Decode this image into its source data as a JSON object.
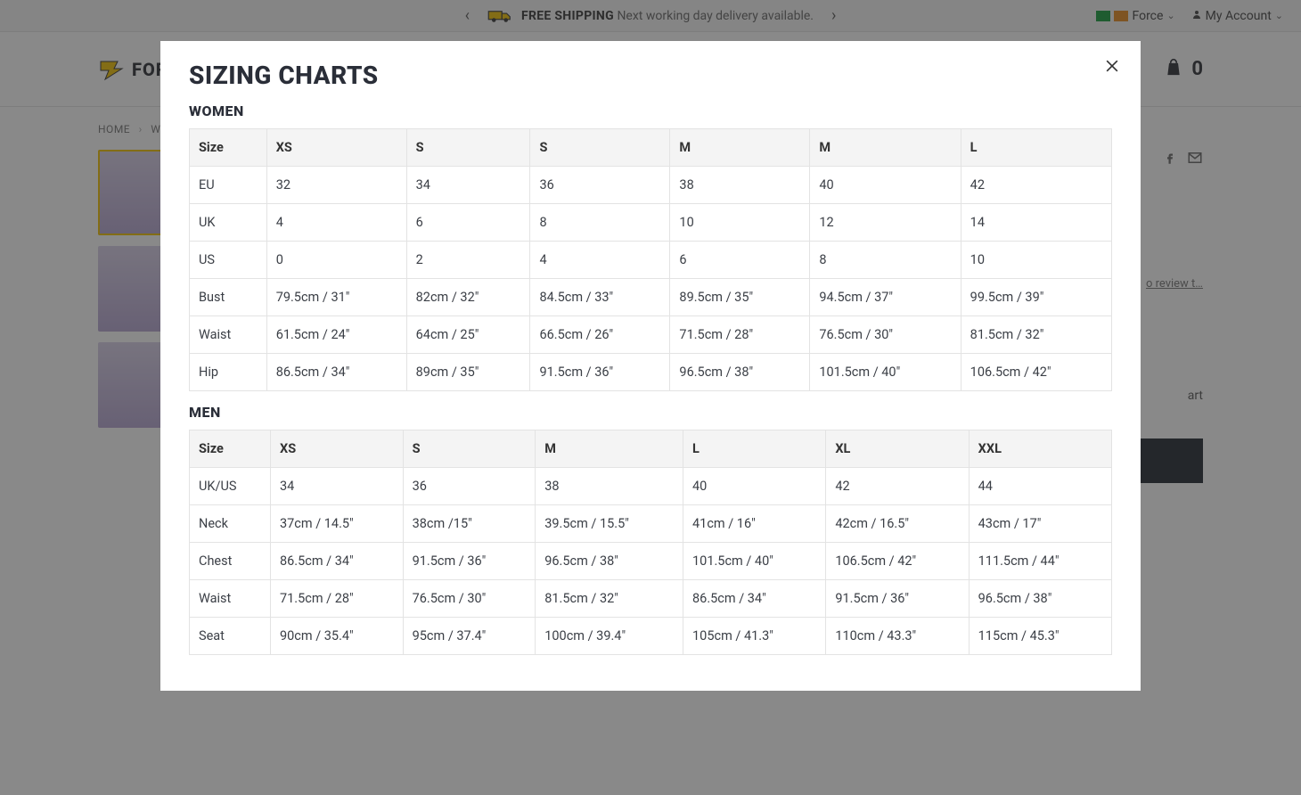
{
  "promo": {
    "prev_glyph": "‹",
    "next_glyph": "›",
    "bold": "FREE SHIPPING",
    "rest": "Next working day delivery available.",
    "region_label": "Force",
    "account_label": "My Account"
  },
  "header": {
    "brand": "FORCE",
    "cart_count": "0"
  },
  "breadcrumb": {
    "home": "HOME",
    "women": "W…"
  },
  "side": {
    "review_text": "o review t…",
    "sizing_text": "art"
  },
  "modal": {
    "title": "SIZING CHARTS",
    "women_heading": "WOMEN",
    "men_heading": "MEN"
  },
  "women_table": {
    "headers": [
      "Size",
      "XS",
      "S",
      "S",
      "M",
      "M",
      "L"
    ],
    "rows": [
      [
        "EU",
        "32",
        "34",
        "36",
        "38",
        "40",
        "42"
      ],
      [
        "UK",
        "4",
        "6",
        "8",
        "10",
        "12",
        "14"
      ],
      [
        "US",
        "0",
        "2",
        "4",
        "6",
        "8",
        "10"
      ],
      [
        "Bust",
        "79.5cm / 31\"",
        "82cm / 32\"",
        "84.5cm / 33\"",
        "89.5cm / 35\"",
        "94.5cm / 37\"",
        "99.5cm / 39\""
      ],
      [
        "Waist",
        "61.5cm / 24\"",
        "64cm / 25\"",
        "66.5cm / 26\"",
        "71.5cm / 28\"",
        "76.5cm / 30\"",
        "81.5cm / 32\""
      ],
      [
        "Hip",
        "86.5cm / 34\"",
        "89cm / 35\"",
        "91.5cm / 36\"",
        "96.5cm / 38\"",
        "101.5cm / 40\"",
        "106.5cm / 42\""
      ]
    ]
  },
  "men_table": {
    "headers": [
      "Size",
      "XS",
      "S",
      "M",
      "L",
      "XL",
      "XXL"
    ],
    "rows": [
      [
        "UK/US",
        "34",
        "36",
        "38",
        "40",
        "42",
        "44"
      ],
      [
        "Neck",
        "37cm / 14.5\"",
        "38cm /15\"",
        "39.5cm / 15.5\"",
        "41cm / 16\"",
        "42cm / 16.5\"",
        "43cm / 17\""
      ],
      [
        "Chest",
        "86.5cm / 34\"",
        "91.5cm / 36\"",
        "96.5cm / 38\"",
        "101.5cm / 40\"",
        "106.5cm / 42\"",
        "111.5cm / 44\""
      ],
      [
        "Waist",
        "71.5cm / 28\"",
        "76.5cm / 30\"",
        "81.5cm / 32\"",
        "86.5cm / 34\"",
        "91.5cm / 36\"",
        "96.5cm / 38\""
      ],
      [
        "Seat",
        "90cm / 35.4\"",
        "95cm / 37.4\"",
        "100cm / 39.4\"",
        "105cm / 41.3\"",
        "110cm / 43.3\"",
        "115cm / 45.3\""
      ]
    ]
  },
  "colors": {
    "modal_bg": "#ffffff",
    "overlay": "rgba(40,40,40,0.55)",
    "border": "#e3e3e3",
    "header_bg": "#f4f4f4",
    "text": "#3b3f46",
    "heading": "#2a2e38"
  }
}
